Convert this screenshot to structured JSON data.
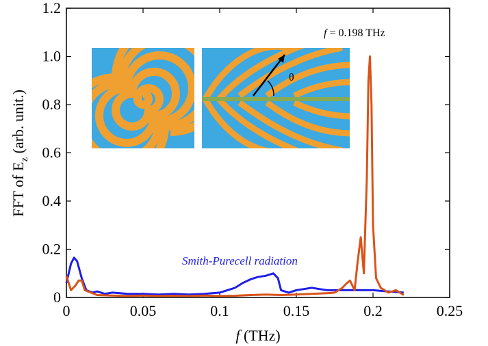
{
  "chart_data": {
    "type": "line",
    "ylabel": {
      "main": "FFT  of  E",
      "sub": "z",
      "rest": " (arb. unit.)"
    },
    "xlabel": {
      "var": "f",
      "rest": " (THz)"
    },
    "annotations": {
      "peak_var": "f",
      "peak_text": " = 0.198 THz",
      "smith": "Smith-Purecell radiation",
      "theta": "θ"
    },
    "xlim": [
      0,
      0.25
    ],
    "ylim": [
      0,
      1.2
    ],
    "xticks": [
      0,
      0.05,
      0.1,
      0.15,
      0.2,
      0.25
    ],
    "yticks": [
      0,
      0.2,
      0.4,
      0.6,
      0.8,
      {
        "value": 1,
        "label": "1.0"
      },
      1.2
    ],
    "series": [
      {
        "color": "#1f1fe6",
        "x": [
          0,
          0.003,
          0.005,
          0.007,
          0.01,
          0.013,
          0.017,
          0.02,
          0.025,
          0.03,
          0.04,
          0.05,
          0.06,
          0.07,
          0.08,
          0.09,
          0.1,
          0.105,
          0.11,
          0.115,
          0.12,
          0.125,
          0.13,
          0.135,
          0.138,
          0.14,
          0.145,
          0.15,
          0.155,
          0.16,
          0.165,
          0.17,
          0.18,
          0.19,
          0.2,
          0.21,
          0.22
        ],
        "values": [
          0.06,
          0.14,
          0.165,
          0.15,
          0.08,
          0.03,
          0.02,
          0.025,
          0.015,
          0.02,
          0.015,
          0.015,
          0.012,
          0.015,
          0.012,
          0.015,
          0.02,
          0.03,
          0.04,
          0.06,
          0.075,
          0.085,
          0.09,
          0.1,
          0.08,
          0.03,
          0.02,
          0.03,
          0.035,
          0.04,
          0.035,
          0.03,
          0.03,
          0.03,
          0.03,
          0.025,
          0.02
        ]
      },
      {
        "color": "#d95319",
        "x": [
          0,
          0.003,
          0.006,
          0.008,
          0.01,
          0.012,
          0.016,
          0.02,
          0.03,
          0.04,
          0.05,
          0.06,
          0.07,
          0.08,
          0.09,
          0.1,
          0.11,
          0.12,
          0.13,
          0.14,
          0.15,
          0.16,
          0.17,
          0.175,
          0.18,
          0.183,
          0.185,
          0.188,
          0.19,
          0.192,
          0.194,
          0.196,
          0.197,
          0.198,
          0.199,
          0.2,
          0.202,
          0.205,
          0.21,
          0.215,
          0.22
        ],
        "values": [
          0.09,
          0.03,
          0.05,
          0.07,
          0.07,
          0.03,
          0.02,
          0.01,
          0.008,
          0.006,
          0.008,
          0.006,
          0.007,
          0.006,
          0.008,
          0.006,
          0.007,
          0.01,
          0.012,
          0.01,
          0.012,
          0.015,
          0.018,
          0.02,
          0.04,
          0.06,
          0.07,
          0.03,
          0.15,
          0.25,
          0.1,
          0.5,
          0.9,
          1.0,
          0.8,
          0.3,
          0.08,
          0.04,
          0.02,
          0.03,
          0.01
        ]
      }
    ]
  }
}
